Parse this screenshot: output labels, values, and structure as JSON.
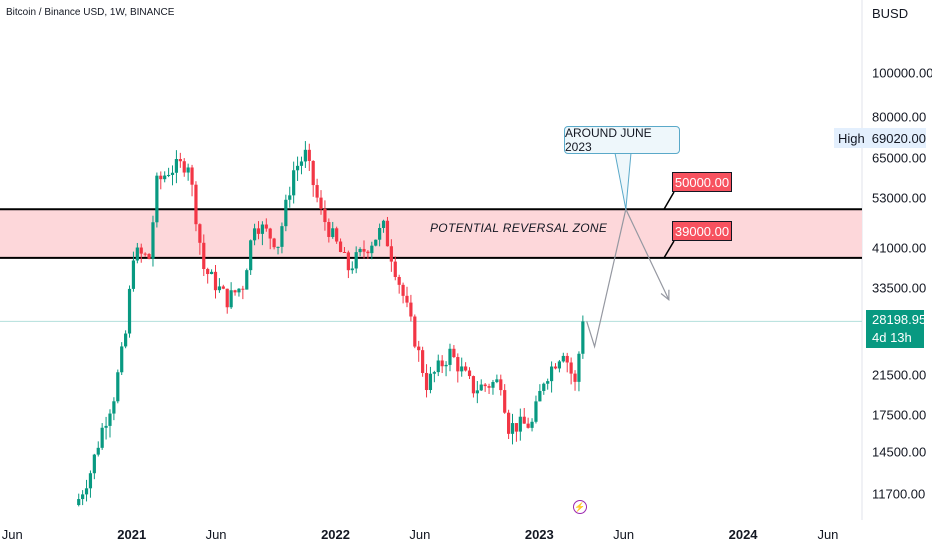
{
  "header": {
    "title": "Bitcoin / Binance USD, 1W, BINANCE",
    "currency": "BUSD"
  },
  "price_axis": {
    "ticks": [
      {
        "label": "100000.00",
        "value": 100000
      },
      {
        "label": "80000.00",
        "value": 80000
      },
      {
        "label": "65000.00",
        "value": 65000
      },
      {
        "label": "53000.00",
        "value": 53000
      },
      {
        "label": "41000.00",
        "value": 41000
      },
      {
        "label": "33500.00",
        "value": 33500
      },
      {
        "label": "21500.00",
        "value": 21500
      },
      {
        "label": "17500.00",
        "value": 17500
      },
      {
        "label": "14500.00",
        "value": 14500
      },
      {
        "label": "11700.00",
        "value": 11700
      }
    ],
    "high_label": "High",
    "high_value": "69020.00",
    "last_price": "28198.95",
    "last_countdown": "4d 13h"
  },
  "time_axis": {
    "ticks": [
      {
        "label": "Jun",
        "date": "2020-06-01",
        "bold": false
      },
      {
        "label": "2021",
        "date": "2021-01-01",
        "bold": true
      },
      {
        "label": "Jun",
        "date": "2021-06-01",
        "bold": false
      },
      {
        "label": "2022",
        "date": "2022-01-01",
        "bold": true
      },
      {
        "label": "Jun",
        "date": "2022-06-01",
        "bold": false
      },
      {
        "label": "2023",
        "date": "2023-01-01",
        "bold": true
      },
      {
        "label": "Jun",
        "date": "2023-06-01",
        "bold": false
      },
      {
        "label": "2024",
        "date": "2024-01-01",
        "bold": true
      },
      {
        "label": "Jun",
        "date": "2024-06-01",
        "bold": false
      }
    ]
  },
  "annotations": {
    "zone_label": "POTENTIAL REVERSAL ZONE",
    "upper_level": "50000.00",
    "lower_level": "39000.00",
    "callout_text": "AROUND JUNE 2023"
  },
  "colors": {
    "up": "#089981",
    "down": "#f23645",
    "zone_fill": "#fdd7da",
    "level_badge": "#f7525f",
    "projection": "#9598a1",
    "last_price_badge": "#089981",
    "high_marker_bg": "#e3effd"
  },
  "chart_data": {
    "type": "candlestick",
    "title": "Bitcoin / Binance USD, 1W, BINANCE",
    "x_unit": "date",
    "y_unit": "BUSD",
    "y_scale": "log",
    "ylim": [
      10500,
      130000
    ],
    "xlim": [
      "2020-05-10",
      "2024-08-01"
    ],
    "grid": false,
    "ohlc_weekly": [
      {
        "date": "2020-09-28",
        "close": 11400
      },
      {
        "date": "2020-10-19",
        "close": 13100
      },
      {
        "date": "2020-11-09",
        "close": 16300
      },
      {
        "date": "2020-11-30",
        "close": 19300
      },
      {
        "date": "2020-12-21",
        "close": 26400
      },
      {
        "date": "2021-01-04",
        "close": 40000
      },
      {
        "date": "2021-02-01",
        "close": 39000
      },
      {
        "date": "2021-02-15",
        "close": 57000
      },
      {
        "date": "2021-03-08",
        "close": 61000
      },
      {
        "date": "2021-04-12",
        "close": 63500
      },
      {
        "date": "2021-05-10",
        "close": 37000
      },
      {
        "date": "2021-06-21",
        "close": 31500
      },
      {
        "date": "2021-07-19",
        "close": 34000
      },
      {
        "date": "2021-08-09",
        "close": 47000
      },
      {
        "date": "2021-09-20",
        "close": 42000
      },
      {
        "date": "2021-10-18",
        "close": 61000
      },
      {
        "date": "2021-11-08",
        "close": 66000
      },
      {
        "date": "2021-12-06",
        "close": 49000
      },
      {
        "date": "2022-01-24",
        "close": 37000
      },
      {
        "date": "2022-03-28",
        "close": 45500
      },
      {
        "date": "2022-05-09",
        "close": 30000
      },
      {
        "date": "2022-06-13",
        "close": 20500
      },
      {
        "date": "2022-07-25",
        "close": 24000
      },
      {
        "date": "2022-09-05",
        "close": 20000
      },
      {
        "date": "2022-10-24",
        "close": 20800
      },
      {
        "date": "2022-11-07",
        "close": 16500
      },
      {
        "date": "2022-12-19",
        "close": 16700
      },
      {
        "date": "2023-01-09",
        "close": 21000
      },
      {
        "date": "2023-02-13",
        "close": 24500
      },
      {
        "date": "2023-03-06",
        "close": 20400
      },
      {
        "date": "2023-03-20",
        "close": 28198.95
      }
    ],
    "all_time_high": 69020,
    "last_price": 28198.95,
    "zone": {
      "label": "POTENTIAL REVERSAL ZONE",
      "low": 39000,
      "high": 50000
    },
    "projection_path": [
      {
        "date": "2023-03-27",
        "value": 28198.95
      },
      {
        "date": "2023-04-10",
        "value": 24800
      },
      {
        "date": "2023-06-05",
        "value": 50000
      },
      {
        "date": "2023-08-21",
        "value": 31500
      }
    ]
  }
}
